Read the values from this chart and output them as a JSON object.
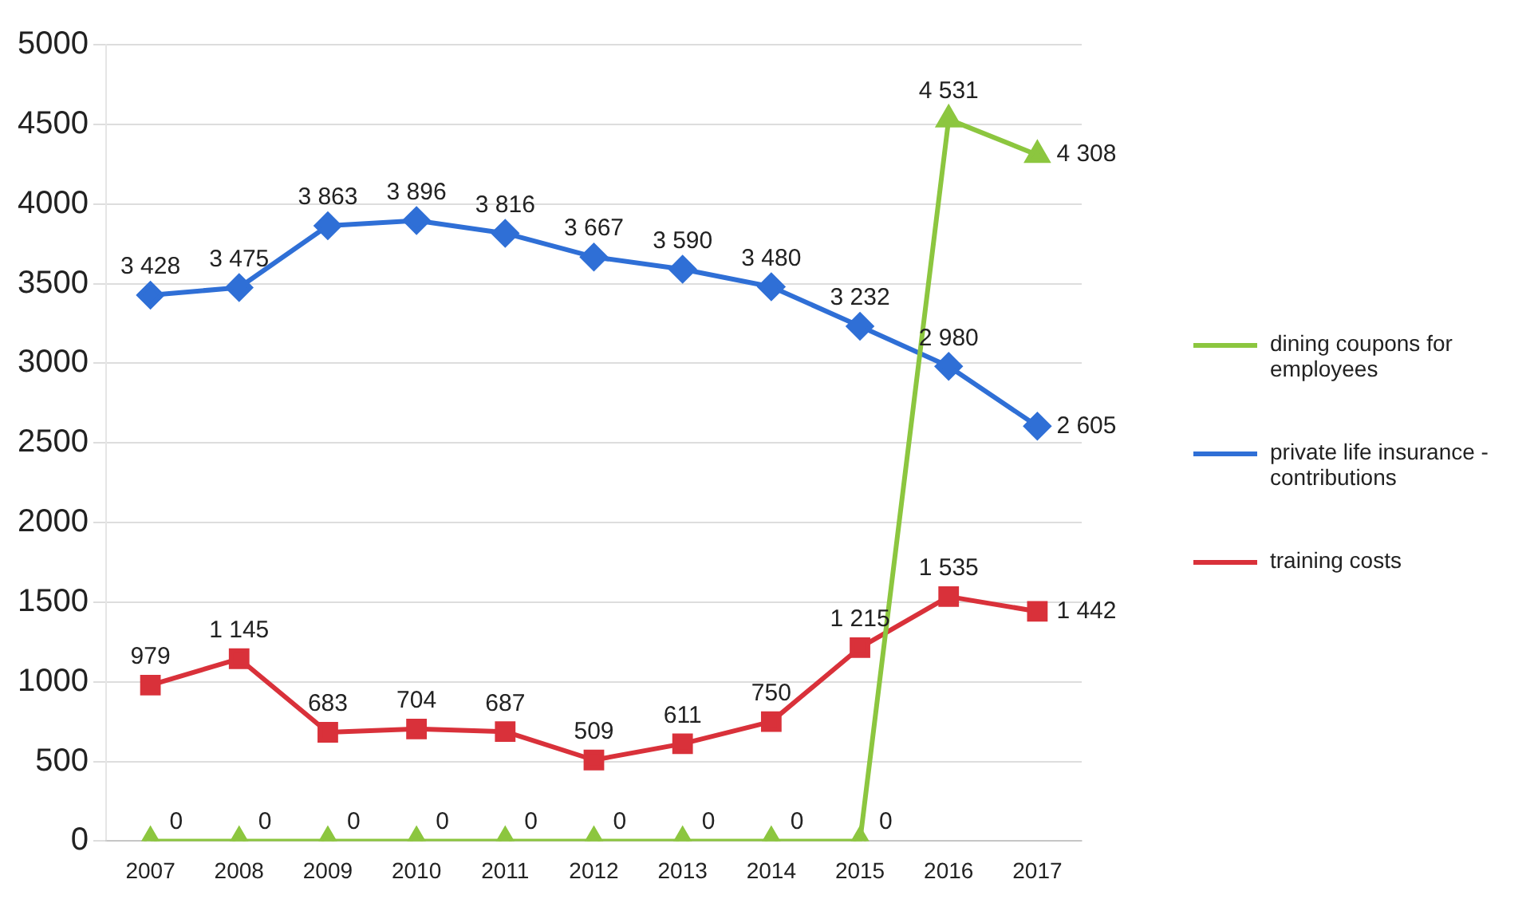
{
  "chart_data": {
    "type": "line",
    "categories": [
      "2007",
      "2008",
      "2009",
      "2010",
      "2011",
      "2012",
      "2013",
      "2014",
      "2015",
      "2016",
      "2017"
    ],
    "series": [
      {
        "name": "dining coupons for employees",
        "color": "#8cc63f",
        "marker": "triangle",
        "values": [
          0,
          0,
          0,
          0,
          0,
          0,
          0,
          0,
          0,
          4531,
          4308
        ],
        "value_labels": [
          "0",
          "0",
          "0",
          "0",
          "0",
          "0",
          "0",
          "0",
          "0",
          "4 531",
          "4 308"
        ]
      },
      {
        "name": "private life insurance - contributions",
        "color": "#2f6fd6",
        "marker": "diamond",
        "values": [
          3428,
          3475,
          3863,
          3896,
          3816,
          3667,
          3590,
          3480,
          3232,
          2980,
          2605
        ],
        "value_labels": [
          "3 428",
          "3 475",
          "3 863",
          "3 896",
          "3 816",
          "3 667",
          "3 590",
          "3 480",
          "3 232",
          "2 980",
          "2 605"
        ]
      },
      {
        "name": "training costs",
        "color": "#d9313a",
        "marker": "square",
        "values": [
          979,
          1145,
          683,
          704,
          687,
          509,
          611,
          750,
          1215,
          1535,
          1442
        ],
        "value_labels": [
          "979",
          "1 145",
          "683",
          "704",
          "687",
          "509",
          "611",
          "750",
          "1 215",
          "1 535",
          "1 442"
        ]
      }
    ],
    "ylim": [
      0,
      5000
    ],
    "yticks": [
      0,
      500,
      1000,
      1500,
      2000,
      2500,
      3000,
      3500,
      4000,
      4500,
      5000
    ],
    "grid": "y",
    "legend": "right",
    "line_style": "solid"
  }
}
